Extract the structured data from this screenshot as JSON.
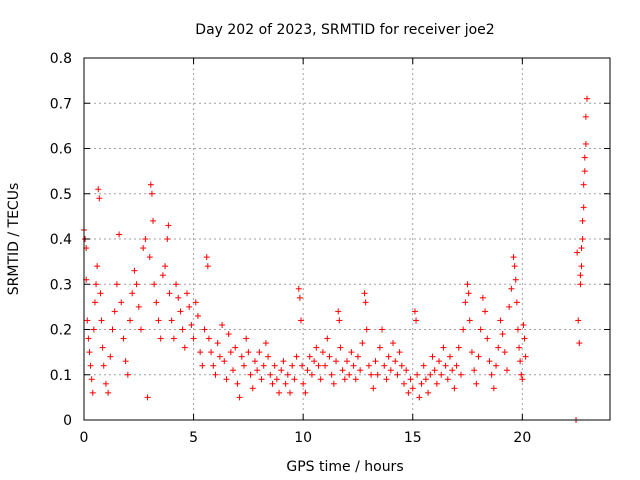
{
  "chart_data": {
    "type": "scatter",
    "title": "Day 202 of 2023, SRMTID for receiver joe2",
    "xlabel": "GPS time / hours",
    "ylabel": "SRMTID / TECUs",
    "xlim": [
      0,
      24
    ],
    "ylim": [
      0,
      0.8
    ],
    "xticks": [
      0,
      5,
      10,
      15,
      20
    ],
    "xtick_labels": [
      "0",
      "5",
      "10",
      "15",
      "20"
    ],
    "yticks": [
      0,
      0.1,
      0.2,
      0.3,
      0.4,
      0.5,
      0.6,
      0.7,
      0.8
    ],
    "ytick_labels": [
      "0",
      "0.1",
      "0.2",
      "0.3",
      "0.4",
      "0.5",
      "0.6",
      "0.7",
      "0.8"
    ],
    "grid": true,
    "marker": "plus",
    "series_color": "#ff0000",
    "series": [
      {
        "name": "SRMTID",
        "points": [
          [
            0.0,
            0.42
          ],
          [
            0.05,
            0.4
          ],
          [
            0.1,
            0.38
          ],
          [
            0.1,
            0.31
          ],
          [
            0.15,
            0.22
          ],
          [
            0.2,
            0.18
          ],
          [
            0.25,
            0.15
          ],
          [
            0.3,
            0.12
          ],
          [
            0.35,
            0.09
          ],
          [
            0.4,
            0.06
          ],
          [
            0.45,
            0.2
          ],
          [
            0.5,
            0.26
          ],
          [
            0.55,
            0.3
          ],
          [
            0.6,
            0.34
          ],
          [
            0.65,
            0.51
          ],
          [
            0.7,
            0.49
          ],
          [
            0.75,
            0.28
          ],
          [
            0.8,
            0.22
          ],
          [
            0.85,
            0.16
          ],
          [
            0.9,
            0.12
          ],
          [
            1.0,
            0.08
          ],
          [
            1.1,
            0.06
          ],
          [
            1.2,
            0.14
          ],
          [
            1.3,
            0.2
          ],
          [
            1.4,
            0.24
          ],
          [
            1.5,
            0.3
          ],
          [
            1.6,
            0.41
          ],
          [
            1.7,
            0.26
          ],
          [
            1.8,
            0.18
          ],
          [
            1.9,
            0.13
          ],
          [
            2.0,
            0.1
          ],
          [
            2.1,
            0.22
          ],
          [
            2.2,
            0.28
          ],
          [
            2.3,
            0.33
          ],
          [
            2.4,
            0.3
          ],
          [
            2.5,
            0.25
          ],
          [
            2.6,
            0.2
          ],
          [
            2.7,
            0.38
          ],
          [
            2.8,
            0.4
          ],
          [
            2.9,
            0.05
          ],
          [
            3.0,
            0.36
          ],
          [
            3.05,
            0.52
          ],
          [
            3.1,
            0.5
          ],
          [
            3.15,
            0.44
          ],
          [
            3.2,
            0.3
          ],
          [
            3.3,
            0.26
          ],
          [
            3.4,
            0.22
          ],
          [
            3.5,
            0.18
          ],
          [
            3.6,
            0.32
          ],
          [
            3.7,
            0.34
          ],
          [
            3.8,
            0.4
          ],
          [
            3.85,
            0.43
          ],
          [
            3.9,
            0.28
          ],
          [
            4.0,
            0.22
          ],
          [
            4.1,
            0.18
          ],
          [
            4.2,
            0.3
          ],
          [
            4.3,
            0.27
          ],
          [
            4.4,
            0.24
          ],
          [
            4.5,
            0.2
          ],
          [
            4.6,
            0.16
          ],
          [
            4.7,
            0.28
          ],
          [
            4.8,
            0.25
          ],
          [
            4.9,
            0.21
          ],
          [
            5.0,
            0.18
          ],
          [
            5.1,
            0.26
          ],
          [
            5.2,
            0.23
          ],
          [
            5.3,
            0.15
          ],
          [
            5.4,
            0.12
          ],
          [
            5.5,
            0.2
          ],
          [
            5.6,
            0.36
          ],
          [
            5.65,
            0.34
          ],
          [
            5.7,
            0.18
          ],
          [
            5.8,
            0.15
          ],
          [
            5.9,
            0.12
          ],
          [
            6.0,
            0.1
          ],
          [
            6.1,
            0.17
          ],
          [
            6.2,
            0.14
          ],
          [
            6.3,
            0.21
          ],
          [
            6.4,
            0.13
          ],
          [
            6.5,
            0.09
          ],
          [
            6.6,
            0.19
          ],
          [
            6.7,
            0.15
          ],
          [
            6.8,
            0.11
          ],
          [
            6.9,
            0.16
          ],
          [
            7.0,
            0.08
          ],
          [
            7.1,
            0.05
          ],
          [
            7.2,
            0.14
          ],
          [
            7.3,
            0.12
          ],
          [
            7.4,
            0.18
          ],
          [
            7.5,
            0.15
          ],
          [
            7.6,
            0.1
          ],
          [
            7.7,
            0.07
          ],
          [
            7.8,
            0.13
          ],
          [
            7.9,
            0.11
          ],
          [
            8.0,
            0.15
          ],
          [
            8.1,
            0.09
          ],
          [
            8.2,
            0.12
          ],
          [
            8.3,
            0.17
          ],
          [
            8.4,
            0.14
          ],
          [
            8.5,
            0.1
          ],
          [
            8.6,
            0.08
          ],
          [
            8.7,
            0.12
          ],
          [
            8.8,
            0.09
          ],
          [
            8.9,
            0.06
          ],
          [
            9.0,
            0.11
          ],
          [
            9.1,
            0.13
          ],
          [
            9.2,
            0.08
          ],
          [
            9.3,
            0.1
          ],
          [
            9.4,
            0.06
          ],
          [
            9.5,
            0.12
          ],
          [
            9.6,
            0.09
          ],
          [
            9.7,
            0.14
          ],
          [
            9.8,
            0.29
          ],
          [
            9.85,
            0.27
          ],
          [
            9.9,
            0.22
          ],
          [
            9.95,
            0.12
          ],
          [
            10.0,
            0.08
          ],
          [
            10.1,
            0.06
          ],
          [
            10.2,
            0.11
          ],
          [
            10.3,
            0.14
          ],
          [
            10.4,
            0.1
          ],
          [
            10.5,
            0.13
          ],
          [
            10.6,
            0.16
          ],
          [
            10.7,
            0.12
          ],
          [
            10.8,
            0.09
          ],
          [
            10.9,
            0.15
          ],
          [
            11.0,
            0.12
          ],
          [
            11.1,
            0.18
          ],
          [
            11.2,
            0.14
          ],
          [
            11.3,
            0.1
          ],
          [
            11.4,
            0.08
          ],
          [
            11.5,
            0.13
          ],
          [
            11.6,
            0.24
          ],
          [
            11.65,
            0.22
          ],
          [
            11.7,
            0.16
          ],
          [
            11.8,
            0.11
          ],
          [
            11.9,
            0.09
          ],
          [
            12.0,
            0.13
          ],
          [
            12.1,
            0.1
          ],
          [
            12.2,
            0.15
          ],
          [
            12.3,
            0.12
          ],
          [
            12.4,
            0.09
          ],
          [
            12.5,
            0.14
          ],
          [
            12.6,
            0.11
          ],
          [
            12.7,
            0.17
          ],
          [
            12.8,
            0.28
          ],
          [
            12.85,
            0.26
          ],
          [
            12.9,
            0.2
          ],
          [
            13.0,
            0.12
          ],
          [
            13.1,
            0.1
          ],
          [
            13.2,
            0.07
          ],
          [
            13.3,
            0.13
          ],
          [
            13.4,
            0.1
          ],
          [
            13.5,
            0.16
          ],
          [
            13.6,
            0.2
          ],
          [
            13.7,
            0.12
          ],
          [
            13.8,
            0.09
          ],
          [
            13.9,
            0.14
          ],
          [
            14.0,
            0.11
          ],
          [
            14.1,
            0.17
          ],
          [
            14.2,
            0.13
          ],
          [
            14.3,
            0.1
          ],
          [
            14.4,
            0.15
          ],
          [
            14.5,
            0.12
          ],
          [
            14.6,
            0.08
          ],
          [
            14.7,
            0.11
          ],
          [
            14.8,
            0.06
          ],
          [
            14.9,
            0.09
          ],
          [
            15.0,
            0.07
          ],
          [
            15.1,
            0.24
          ],
          [
            15.15,
            0.22
          ],
          [
            15.2,
            0.1
          ],
          [
            15.3,
            0.05
          ],
          [
            15.4,
            0.08
          ],
          [
            15.5,
            0.12
          ],
          [
            15.6,
            0.09
          ],
          [
            15.7,
            0.06
          ],
          [
            15.8,
            0.1
          ],
          [
            15.9,
            0.14
          ],
          [
            16.0,
            0.11
          ],
          [
            16.1,
            0.08
          ],
          [
            16.2,
            0.13
          ],
          [
            16.3,
            0.1
          ],
          [
            16.4,
            0.16
          ],
          [
            16.5,
            0.12
          ],
          [
            16.6,
            0.09
          ],
          [
            16.7,
            0.14
          ],
          [
            16.8,
            0.11
          ],
          [
            16.9,
            0.07
          ],
          [
            17.0,
            0.12
          ],
          [
            17.1,
            0.16
          ],
          [
            17.2,
            0.1
          ],
          [
            17.3,
            0.2
          ],
          [
            17.4,
            0.26
          ],
          [
            17.5,
            0.3
          ],
          [
            17.55,
            0.28
          ],
          [
            17.6,
            0.22
          ],
          [
            17.7,
            0.15
          ],
          [
            17.8,
            0.11
          ],
          [
            17.9,
            0.08
          ],
          [
            18.0,
            0.14
          ],
          [
            18.1,
            0.2
          ],
          [
            18.2,
            0.27
          ],
          [
            18.3,
            0.24
          ],
          [
            18.4,
            0.18
          ],
          [
            18.5,
            0.13
          ],
          [
            18.6,
            0.1
          ],
          [
            18.7,
            0.07
          ],
          [
            18.8,
            0.12
          ],
          [
            18.9,
            0.16
          ],
          [
            19.0,
            0.22
          ],
          [
            19.1,
            0.19
          ],
          [
            19.2,
            0.15
          ],
          [
            19.3,
            0.11
          ],
          [
            19.4,
            0.25
          ],
          [
            19.5,
            0.29
          ],
          [
            19.6,
            0.36
          ],
          [
            19.65,
            0.34
          ],
          [
            19.7,
            0.31
          ],
          [
            19.75,
            0.26
          ],
          [
            19.8,
            0.2
          ],
          [
            19.85,
            0.16
          ],
          [
            19.9,
            0.13
          ],
          [
            19.95,
            0.1
          ],
          [
            20.0,
            0.09
          ],
          [
            20.05,
            0.21
          ],
          [
            20.1,
            0.18
          ],
          [
            20.15,
            0.14
          ],
          [
            22.45,
            0.0
          ],
          [
            22.5,
            0.37
          ],
          [
            22.55,
            0.22
          ],
          [
            22.6,
            0.17
          ],
          [
            22.65,
            0.3
          ],
          [
            22.7,
            0.34
          ],
          [
            22.75,
            0.4
          ],
          [
            22.8,
            0.47
          ],
          [
            22.85,
            0.55
          ],
          [
            22.9,
            0.61
          ],
          [
            22.95,
            0.71
          ],
          [
            22.9,
            0.67
          ],
          [
            22.85,
            0.58
          ],
          [
            22.8,
            0.52
          ],
          [
            22.75,
            0.44
          ],
          [
            22.7,
            0.38
          ],
          [
            22.65,
            0.32
          ]
        ]
      }
    ]
  }
}
